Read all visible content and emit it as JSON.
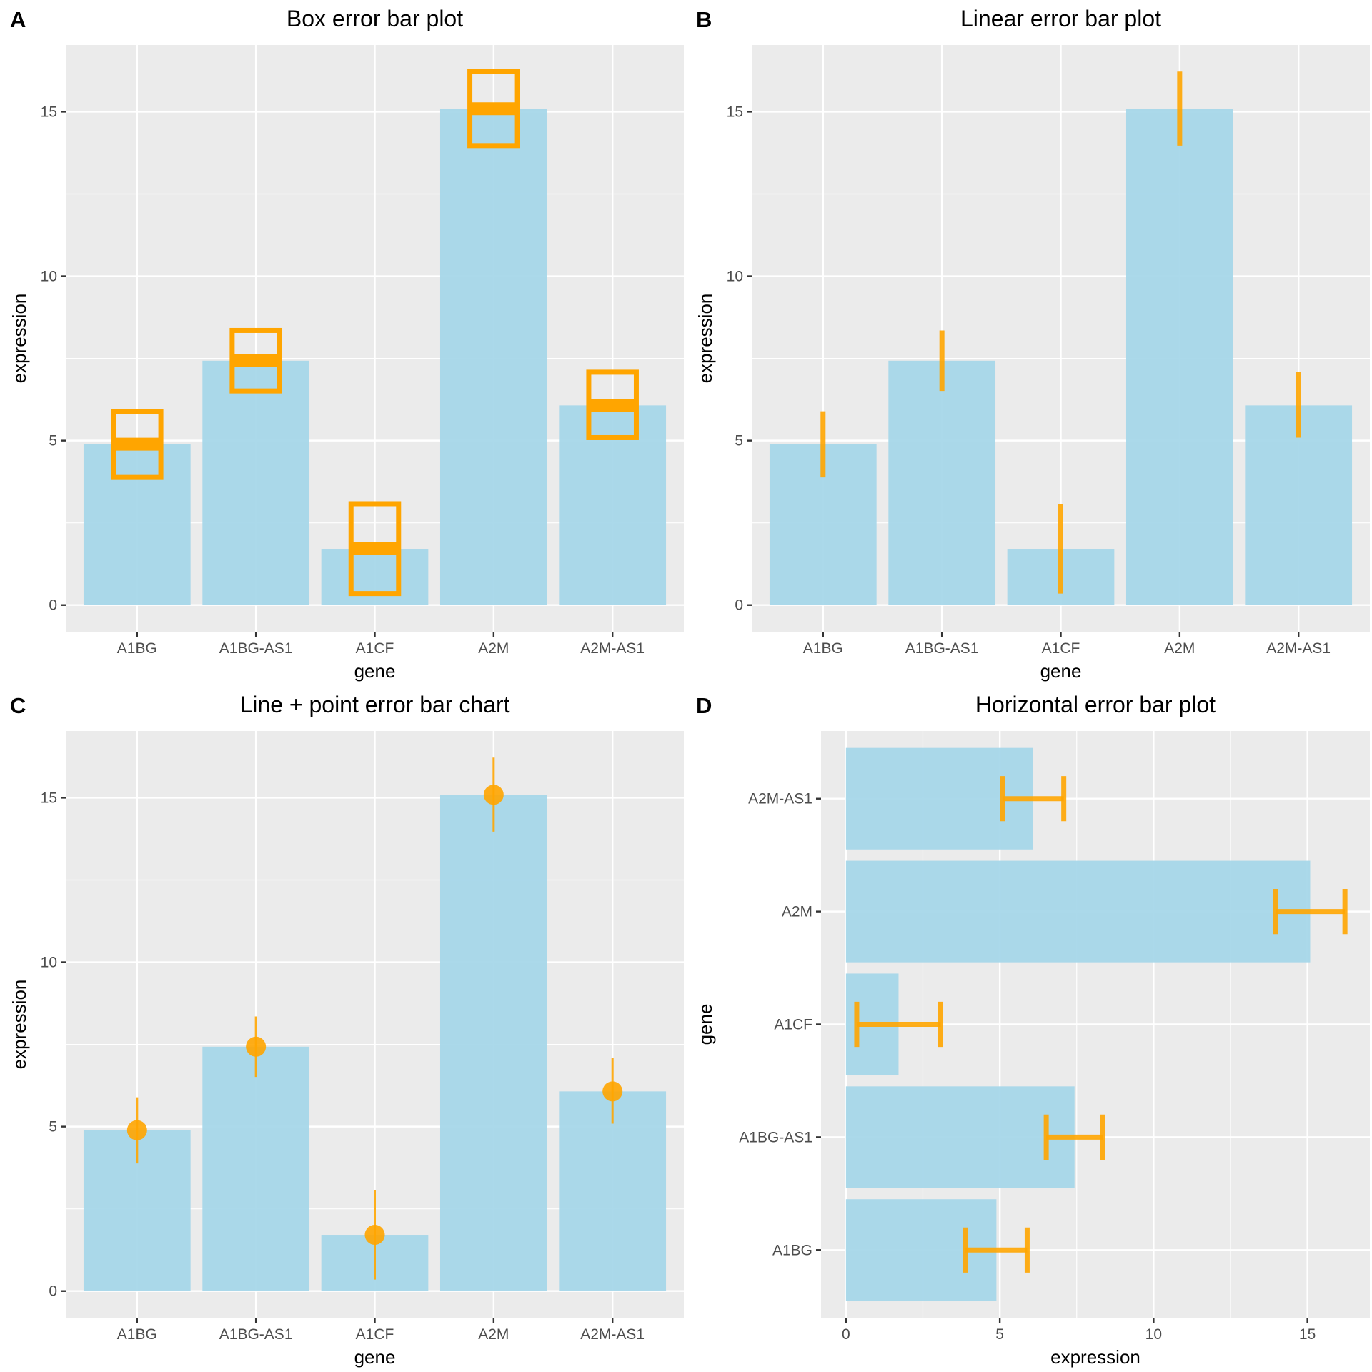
{
  "figure": {
    "panels": [
      {
        "letter": "A",
        "title": "Box error bar plot"
      },
      {
        "letter": "B",
        "title": "Linear error bar plot"
      },
      {
        "letter": "C",
        "title": "Line + point error bar chart"
      },
      {
        "letter": "D",
        "title": "Horizontal error bar plot"
      }
    ]
  },
  "colors": {
    "panel_background": "#EBEBEB",
    "grid": "#FFFFFF",
    "bar_fill": "#A6D7E9",
    "error": "#FFA500",
    "tick_text": "#4D4D4D",
    "tick_mark": "#333333"
  },
  "chart_data": [
    {
      "panel": "A",
      "type": "bar",
      "title": "Box error bar plot",
      "error_style": "box (crossbar)",
      "xlabel": "gene",
      "ylabel": "expression",
      "categories": [
        "A1BG",
        "A1BG-AS1",
        "A1CF",
        "A2M",
        "A2M-AS1"
      ],
      "values": [
        4.89,
        7.43,
        1.71,
        15.09,
        6.07
      ],
      "error_low": [
        3.88,
        6.51,
        0.35,
        13.97,
        5.09
      ],
      "error_high": [
        5.89,
        8.35,
        3.08,
        16.22,
        7.08
      ],
      "yticks": [
        0,
        5,
        10,
        15
      ],
      "ylim": [
        -0.81,
        17.03
      ],
      "grid": true
    },
    {
      "panel": "B",
      "type": "bar",
      "title": "Linear error bar plot",
      "error_style": "linerange",
      "xlabel": "gene",
      "ylabel": "expression",
      "categories": [
        "A1BG",
        "A1BG-AS1",
        "A1CF",
        "A2M",
        "A2M-AS1"
      ],
      "values": [
        4.89,
        7.43,
        1.71,
        15.09,
        6.07
      ],
      "error_low": [
        3.88,
        6.51,
        0.35,
        13.97,
        5.09
      ],
      "error_high": [
        5.89,
        8.35,
        3.08,
        16.22,
        7.08
      ],
      "yticks": [
        0,
        5,
        10,
        15
      ],
      "ylim": [
        -0.81,
        17.03
      ],
      "grid": true
    },
    {
      "panel": "C",
      "type": "bar",
      "title": "Line + point error bar chart",
      "error_style": "pointrange",
      "xlabel": "gene",
      "ylabel": "expression",
      "categories": [
        "A1BG",
        "A1BG-AS1",
        "A1CF",
        "A2M",
        "A2M-AS1"
      ],
      "values": [
        4.89,
        7.43,
        1.71,
        15.09,
        6.07
      ],
      "error_low": [
        3.88,
        6.51,
        0.35,
        13.97,
        5.09
      ],
      "error_high": [
        5.89,
        8.35,
        3.08,
        16.22,
        7.08
      ],
      "yticks": [
        0,
        5,
        10,
        15
      ],
      "ylim": [
        -0.81,
        17.03
      ],
      "grid": true
    },
    {
      "panel": "D",
      "type": "bar",
      "orientation": "horizontal",
      "title": "Horizontal error bar plot",
      "error_style": "errorbar (capped)",
      "xlabel": "expression",
      "ylabel": "gene",
      "categories": [
        "A1BG",
        "A1BG-AS1",
        "A1CF",
        "A2M",
        "A2M-AS1"
      ],
      "values": [
        4.89,
        7.43,
        1.71,
        15.09,
        6.07
      ],
      "error_low": [
        3.88,
        6.51,
        0.35,
        13.97,
        5.09
      ],
      "error_high": [
        5.89,
        8.35,
        3.08,
        16.22,
        7.08
      ],
      "xticks": [
        0,
        5,
        10,
        15
      ],
      "xlim": [
        -0.81,
        17.03
      ],
      "grid": true
    }
  ]
}
